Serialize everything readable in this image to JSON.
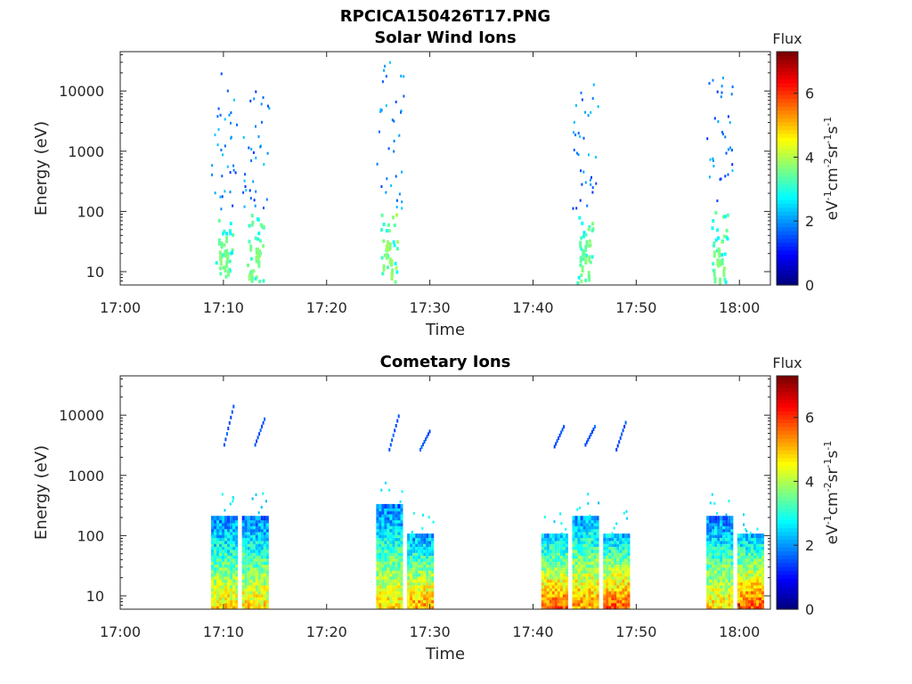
{
  "figure_title": "RPCICA150426T17.PNG",
  "chart_data": [
    {
      "type": "heatmap",
      "title": "Solar Wind Ions",
      "xlabel": "Time",
      "ylabel": "Energy (eV)",
      "y_scale": "log",
      "y_ticks": [
        "10",
        "100",
        "1000",
        "10000"
      ],
      "x_ticks": [
        "17:00",
        "17:10",
        "17:20",
        "17:30",
        "17:40",
        "17:50",
        "18:00"
      ],
      "colorbar": {
        "title": "Flux",
        "label": "eV-1cm-2sr-1s-1",
        "ticks": [
          "0",
          "2",
          "4",
          "6"
        ],
        "range": [
          0,
          7.3
        ]
      },
      "bursts": [
        {
          "time": "17:10",
          "low_energy_flux": 3.4,
          "sparse_high_energy_up_to": 20000
        },
        {
          "time": "17:13",
          "low_energy_flux": 3.4,
          "sparse_high_energy_up_to": 14000
        },
        {
          "time": "17:26",
          "low_energy_flux": 3.6,
          "sparse_high_energy_up_to": 30000
        },
        {
          "time": "17:45",
          "low_energy_flux": 3.4,
          "sparse_high_energy_up_to": 15000
        },
        {
          "time": "17:58",
          "low_energy_flux": 3.4,
          "sparse_high_energy_up_to": 19000
        }
      ]
    },
    {
      "type": "heatmap",
      "title": "Cometary Ions",
      "xlabel": "Time",
      "ylabel": "Energy (eV)",
      "y_scale": "log",
      "y_ticks": [
        "10",
        "100",
        "1000",
        "10000"
      ],
      "x_ticks": [
        "17:00",
        "17:10",
        "17:20",
        "17:30",
        "17:40",
        "17:50",
        "18:00"
      ],
      "colorbar": {
        "title": "Flux",
        "label": "eV-1cm-2sr-1s-1",
        "ticks": [
          "0",
          "2",
          "4",
          "6"
        ],
        "range": [
          0,
          7.3
        ]
      },
      "bursts": [
        {
          "time": "17:10",
          "energy_range": [
            6,
            200
          ],
          "peak_flux": 5.5
        },
        {
          "time": "17:13",
          "energy_range": [
            6,
            200
          ],
          "peak_flux": 5.5
        },
        {
          "time": "17:26",
          "energy_range": [
            6,
            300
          ],
          "peak_flux": 5.5
        },
        {
          "time": "17:29",
          "energy_range": [
            6,
            100
          ],
          "peak_flux": 6.0
        },
        {
          "time": "17:42",
          "energy_range": [
            6,
            100
          ],
          "peak_flux": 6.5
        },
        {
          "time": "17:45",
          "energy_range": [
            6,
            200
          ],
          "peak_flux": 6.0
        },
        {
          "time": "17:48",
          "energy_range": [
            6,
            100
          ],
          "peak_flux": 6.5
        },
        {
          "time": "17:58",
          "energy_range": [
            6,
            200
          ],
          "peak_flux": 5.5
        },
        {
          "time": "18:01",
          "energy_range": [
            6,
            100
          ],
          "peak_flux": 6.5
        }
      ],
      "high_energy_streaks": [
        {
          "time_start": "17:10",
          "energy_range": [
            3000,
            13000
          ]
        },
        {
          "time_start": "17:13",
          "energy_range": [
            3000,
            8000
          ]
        },
        {
          "time_start": "17:26",
          "energy_range": [
            2500,
            9000
          ]
        },
        {
          "time_start": "17:29",
          "energy_range": [
            2500,
            5000
          ]
        },
        {
          "time_start": "17:42",
          "energy_range": [
            2800,
            6000
          ]
        },
        {
          "time_start": "17:45",
          "energy_range": [
            3000,
            6000
          ]
        },
        {
          "time_start": "17:48",
          "energy_range": [
            2500,
            7000
          ]
        }
      ]
    }
  ]
}
